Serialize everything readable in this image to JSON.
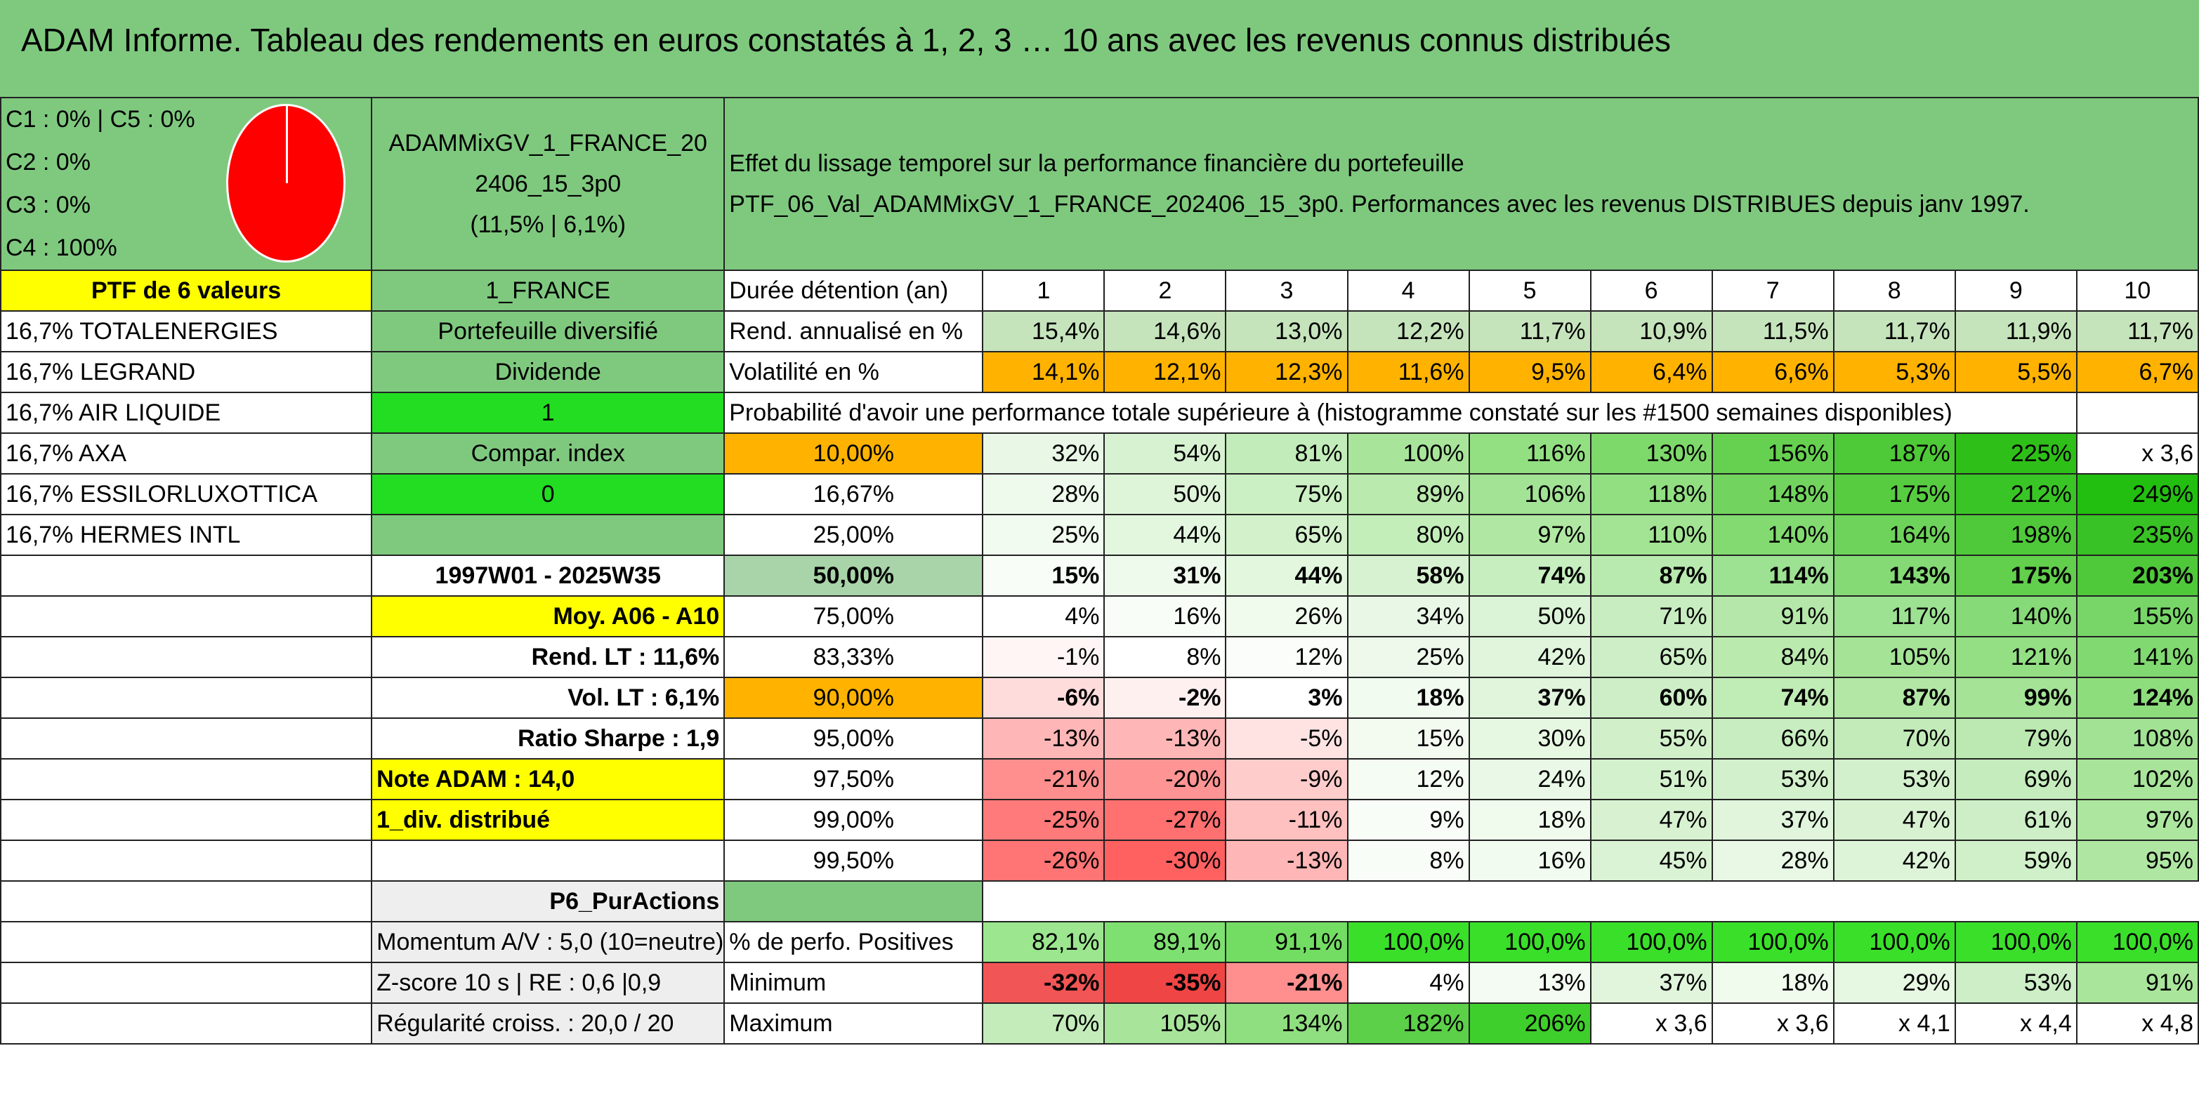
{
  "title": "ADAM Informe. Tableau des rendements en euros constatés à 1, 2, 3 … 10 ans avec les revenus connus distribués",
  "allocation": [
    "C1 : 0% | C5 : 0%",
    "C2 : 0%",
    "C3 : 0%",
    "C4 : 100%"
  ],
  "pie": {
    "color": "#ff0000",
    "C4": 100
  },
  "portfolio": {
    "name_line1": "ADAMMixGV_1_FRANCE_20",
    "name_line2": "2406_15_3p0",
    "stats": "(11,5% | 6,1%)"
  },
  "effect_text": [
    "Effet du lissage temporel sur la performance financière du portefeuille",
    "PTF_06_Val_ADAMMixGV_1_FRANCE_202406_15_3p0. Performances avec les revenus DISTRIBUES depuis janv 1997."
  ],
  "colors": {
    "green": "#7fc97f",
    "yellow": "#ffff00",
    "orange": "#ffb300",
    "bright_green": "#22dd22",
    "red_text": "#e0101a"
  },
  "rows": [
    {
      "a": "PTF de 6 valeurs",
      "a_style": "yel c b",
      "b": "1_FRANCE",
      "b_style": "g c",
      "c": "Durée détention (an)",
      "c_style": "",
      "v": [
        "1",
        "2",
        "3",
        "4",
        "5",
        "6",
        "7",
        "8",
        "9",
        "10"
      ],
      "v_style": "c"
    },
    {
      "a": "16,7% TOTALENERGIES",
      "b": "Portefeuille diversifié",
      "b_style": "g c",
      "c": "Rend. annualisé en %",
      "v": [
        "15,4%",
        "14,6%",
        "13,0%",
        "12,2%",
        "11,7%",
        "10,9%",
        "11,5%",
        "11,7%",
        "11,9%",
        "11,7%"
      ],
      "v_style": "r",
      "v_bg": "#c6e4bc"
    },
    {
      "a": "16,7% LEGRAND",
      "b": "Dividende",
      "b_style": "g c",
      "c": "Volatilité en %",
      "v": [
        "14,1%",
        "12,1%",
        "12,3%",
        "11,6%",
        "9,5%",
        "6,4%",
        "6,6%",
        "5,3%",
        "5,5%",
        "6,7%"
      ],
      "v_style": "r",
      "v_bg": "#ffb300"
    },
    {
      "a": "16,7% AIR LIQUIDE",
      "b": "1",
      "b_style": "brt c",
      "c": "Probabilité d'avoir une performance totale supérieure à (histogramme constaté sur les #1500 semaines disponibles)",
      "c_span": 10,
      "v": [],
      "v_style": "r"
    },
    {
      "a": "16,7% AXA",
      "b": "Compar. index",
      "b_style": "g c",
      "c": "10,00%",
      "c_style": "org c",
      "v": [
        "32%",
        "54%",
        "81%",
        "100%",
        "116%",
        "130%",
        "156%",
        "187%",
        "225%",
        "x 3,6"
      ],
      "v_style": "r",
      "v_bg": [
        "#e9f7e6",
        "#d7f2d1",
        "#c2ecb9",
        "#a8e59a",
        "#93e083",
        "#7ed96b",
        "#66d150",
        "#4ec937",
        "#2fbf19",
        "#ffffff"
      ]
    },
    {
      "a": "16,7% ESSILORLUXOTTICA",
      "b": "0",
      "b_style": "brt c",
      "c": "16,67%",
      "c_style": "c",
      "v": [
        "28%",
        "50%",
        "75%",
        "89%",
        "106%",
        "118%",
        "148%",
        "175%",
        "212%",
        "249%"
      ],
      "v_style": "r",
      "v_bg": [
        "#eefaec",
        "#dff5da",
        "#cbf0c3",
        "#baeaae",
        "#a2e395",
        "#92df82",
        "#72d45e",
        "#58cc41",
        "#3ac526",
        "#22bf10"
      ]
    },
    {
      "a": "16,7% HERMES INTL",
      "b": "",
      "b_style": "g",
      "c": "25,00%",
      "c_style": "c",
      "v": [
        "25%",
        "44%",
        "65%",
        "80%",
        "97%",
        "110%",
        "140%",
        "164%",
        "198%",
        "235%"
      ],
      "v_style": "r",
      "v_bg": [
        "#f1fbef",
        "#e3f7df",
        "#d3f2cc",
        "#c3eeb9",
        "#b0e8a3",
        "#a2e493",
        "#82da70",
        "#6ed35a",
        "#4fc93a",
        "#39c225"
      ]
    },
    {
      "a": "",
      "b": "1997W01 - 2025W35",
      "b_style": "c red b",
      "c": "50,00%",
      "c_style": "lg c b",
      "big": true,
      "v": [
        "15%",
        "31%",
        "44%",
        "58%",
        "74%",
        "87%",
        "114%",
        "143%",
        "175%",
        "203%"
      ],
      "v_style": "r b",
      "v_bg": [
        "#f8fdf7",
        "#eefaec",
        "#e3f7df",
        "#d7f2d1",
        "#c6eebf",
        "#b8e9ae",
        "#9de192",
        "#85da76",
        "#62cf4d",
        "#4fc93a"
      ]
    },
    {
      "a": "",
      "b": "Moy. A06 - A10",
      "b_style": "yel r red b",
      "c": "75,00%",
      "c_style": "c",
      "v": [
        "4%",
        "16%",
        "26%",
        "34%",
        "50%",
        "71%",
        "91%",
        "117%",
        "140%",
        "155%"
      ],
      "v_style": "r",
      "v_bg": [
        "#ffffff",
        "#f8fdf7",
        "#f0fbee",
        "#e9f7e6",
        "#dbf3d6",
        "#c8edc0",
        "#b4e7a9",
        "#9de192",
        "#86da77",
        "#78d668"
      ]
    },
    {
      "a": "",
      "b": "Rend. LT : 11,6%",
      "b_style": "r red b",
      "c": "83,33%",
      "c_style": "c",
      "v": [
        "-1%",
        "8%",
        "12%",
        "25%",
        "42%",
        "65%",
        "84%",
        "105%",
        "121%",
        "141%"
      ],
      "v_style": "r",
      "v_bg": [
        "#fff5f5",
        "#ffffff",
        "#fafdf9",
        "#eef9ec",
        "#e0f5dc",
        "#cdeec6",
        "#baeaae",
        "#a5e397",
        "#94df84",
        "#81d971"
      ]
    },
    {
      "a": "",
      "b": "Vol. LT : 6,1%",
      "b_style": "r red b",
      "c": "90,00%",
      "c_style": "org c",
      "v": [
        "-6%",
        "-2%",
        "3%",
        "18%",
        "37%",
        "60%",
        "74%",
        "87%",
        "99%",
        "124%"
      ],
      "v_style": "r b",
      "v_bg": [
        "#ffdcdc",
        "#fff0f0",
        "#ffffff",
        "#f1fbef",
        "#e0f5dc",
        "#cdeec6",
        "#c0ecb6",
        "#b2e7a6",
        "#a5e397",
        "#8edd7d"
      ]
    },
    {
      "a": "",
      "b": "Ratio Sharpe : 1,9",
      "b_style": "r red b",
      "c": "95,00%",
      "c_style": "c",
      "v": [
        "-13%",
        "-13%",
        "-5%",
        "15%",
        "30%",
        "55%",
        "66%",
        "70%",
        "79%",
        "108%"
      ],
      "v_style": "r",
      "v_bg": [
        "#ffb6b6",
        "#ffb6b6",
        "#ffe3e3",
        "#f3fbf1",
        "#e6f8e2",
        "#d1f0ca",
        "#c8edc0",
        "#c3ebba",
        "#bbe9b1",
        "#a2e294"
      ]
    },
    {
      "a": "",
      "b": "Note ADAM : 14,0",
      "b_style": "yel b",
      "c": "97,50%",
      "c_style": "c",
      "v": [
        "-21%",
        "-20%",
        "-9%",
        "12%",
        "24%",
        "51%",
        "53%",
        "53%",
        "69%",
        "102%"
      ],
      "v_style": "r",
      "v_bg": [
        "#ff8f8f",
        "#ff9494",
        "#ffcccc",
        "#f5fcf3",
        "#eaf9e7",
        "#d4f1cd",
        "#d2f0cb",
        "#d2f0cb",
        "#c5ecbd",
        "#a8e59a"
      ]
    },
    {
      "a": "",
      "b": "1_div. distribué",
      "b_style": "yel b",
      "c": "99,00%",
      "c_style": "c",
      "v": [
        "-25%",
        "-27%",
        "-11%",
        "9%",
        "18%",
        "47%",
        "37%",
        "47%",
        "61%",
        "97%"
      ],
      "v_style": "r",
      "v_bg": [
        "#ff7a7a",
        "#ff7070",
        "#ffc0c0",
        "#f8fdf7",
        "#f0fbee",
        "#d8f2d1",
        "#e0f5dc",
        "#d8f2d1",
        "#cdeec6",
        "#ace69f"
      ]
    },
    {
      "a": "",
      "b": "",
      "b_style": "",
      "c": "99,50%",
      "c_style": "c",
      "v": [
        "-26%",
        "-30%",
        "-13%",
        "8%",
        "16%",
        "45%",
        "28%",
        "42%",
        "59%",
        "95%"
      ],
      "v_style": "r",
      "v_bg": [
        "#ff7474",
        "#ff6060",
        "#ffb6b6",
        "#f8fdf7",
        "#f1fbef",
        "#daf3d4",
        "#e8f8e5",
        "#ddf4d8",
        "#cff0c8",
        "#afe7a2"
      ]
    },
    {
      "a": "",
      "b": "P6_PurActions",
      "b_style": "gry r red b",
      "c": "",
      "c_style": "g",
      "v": [
        "",
        "",
        "",
        "",
        "",
        "",
        "",
        "",
        "",
        ""
      ],
      "v_style": "r",
      "v_blank": true
    },
    {
      "a": "",
      "b": "Momentum A/V : 5,0 (10=neutre)",
      "b_style": "gry",
      "c": "% de perfo. Positives",
      "v": [
        "82,1%",
        "89,1%",
        "91,1%",
        "100,0%",
        "100,0%",
        "100,0%",
        "100,0%",
        "100,0%",
        "100,0%",
        "100,0%"
      ],
      "v_style": "r",
      "v_bg": [
        "#9be68f",
        "#7ee070",
        "#73dd63",
        "#3adf2a",
        "#3adf2a",
        "#3adf2a",
        "#3adf2a",
        "#3adf2a",
        "#3adf2a",
        "#3adf2a"
      ]
    },
    {
      "a": "",
      "b": "Z-score 10 s | RE : 0,6 |0,9",
      "b_style": "gry",
      "c": "Minimum",
      "v": [
        "-32%",
        "-35%",
        "-21%",
        "4%",
        "13%",
        "37%",
        "18%",
        "29%",
        "53%",
        "91%"
      ],
      "v_style": "r",
      "v_bg": [
        "#f25555",
        "#f04545",
        "#ff8f8f",
        "#ffffff",
        "#f4fbf2",
        "#e0f5dc",
        "#f0fbee",
        "#e6f7e2",
        "#cdeec6",
        "#a9e59b"
      ],
      "bold": [
        0,
        1,
        2
      ]
    },
    {
      "a": "",
      "b": "Régularité croiss. : 20,0 / 20",
      "b_style": "gry",
      "c": "Maximum",
      "v": [
        "70%",
        "105%",
        "134%",
        "182%",
        "206%",
        "x 3,6",
        "x 3,6",
        "x 4,1",
        "x 4,4",
        "x 4,8"
      ],
      "v_style": "r",
      "v_bg": [
        "#c4ecbb",
        "#a8e59a",
        "#8fde7f",
        "#5bd048",
        "#3fcf2c",
        "#ffffff",
        "#ffffff",
        "#ffffff",
        "#ffffff",
        "#ffffff"
      ]
    }
  ]
}
